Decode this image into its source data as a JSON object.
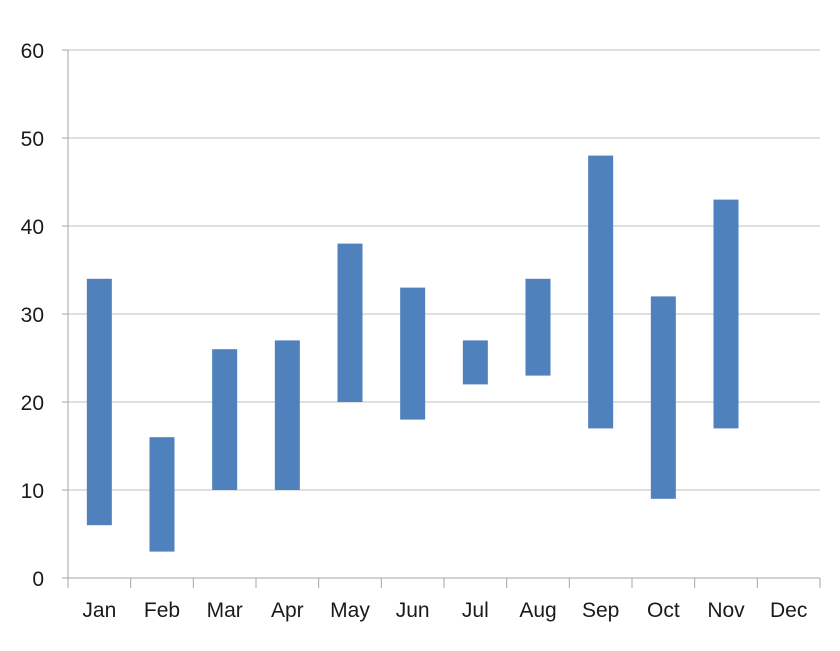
{
  "chart_data": {
    "type": "bar",
    "subtype": "floating-range",
    "categories": [
      "Jan",
      "Feb",
      "Mar",
      "Apr",
      "May",
      "Jun",
      "Jul",
      "Aug",
      "Sep",
      "Oct",
      "Nov",
      "Dec"
    ],
    "series": [
      {
        "low": [
          6,
          3,
          10,
          10,
          20,
          18,
          22,
          23,
          17,
          9,
          17,
          null
        ],
        "high": [
          34,
          16,
          26,
          27,
          38,
          33,
          27,
          34,
          48,
          32,
          43,
          null
        ]
      }
    ],
    "ylim": [
      0,
      60
    ],
    "yticks": [
      "0",
      "10",
      "20",
      "30",
      "40",
      "50",
      "60"
    ],
    "title": "",
    "xlabel": "",
    "ylabel": "",
    "grid": true,
    "legend": "none",
    "colors": {
      "bar": "#4f81bd",
      "grid": "#c0c0c0",
      "axis": "#a6a6a6",
      "text": "#1a1a1a"
    }
  }
}
